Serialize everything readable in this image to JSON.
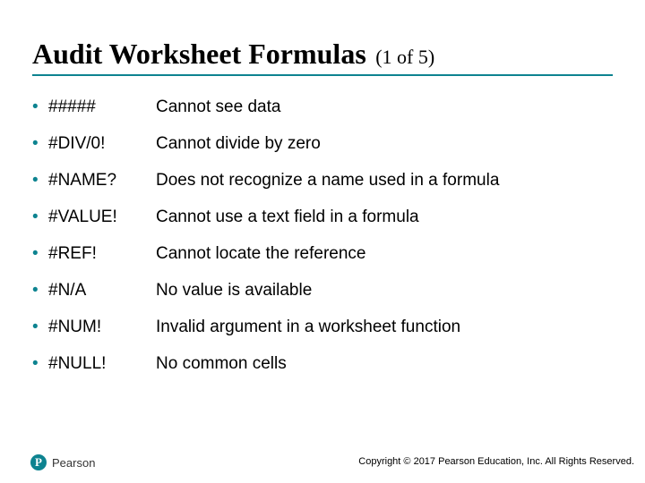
{
  "colors": {
    "accent": "#0d8390",
    "text": "#000000",
    "background": "#ffffff"
  },
  "typography": {
    "title_font": "Times New Roman",
    "title_fontsize": 32,
    "title_weight": "bold",
    "subtitle_fontsize": 22,
    "body_font": "Arial",
    "body_fontsize": 19,
    "footer_fontsize": 11
  },
  "title": {
    "main": "Audit Worksheet Formulas",
    "sub": "(1 of 5)",
    "underline_color": "#0d8390"
  },
  "bullet_glyph": "•",
  "items": [
    {
      "code": "#####",
      "desc": "Cannot see data"
    },
    {
      "code": "#DIV/0!",
      "desc": "Cannot divide by zero"
    },
    {
      "code": "#NAME?",
      "desc": "Does not recognize a name used in a formula"
    },
    {
      "code": "#VALUE!",
      "desc": "Cannot use a text field in a formula"
    },
    {
      "code": "#REF!",
      "desc": "Cannot locate the reference"
    },
    {
      "code": "#N/A",
      "desc": "No value is available"
    },
    {
      "code": "#NUM!",
      "desc": "Invalid argument in a worksheet function"
    },
    {
      "code": "#NULL!",
      "desc": "No common cells"
    }
  ],
  "logo": {
    "mark_letter": "P",
    "text": "Pearson",
    "mark_bg": "#0d8390"
  },
  "footer": "Copyright © 2017 Pearson Education, Inc. All Rights Reserved."
}
